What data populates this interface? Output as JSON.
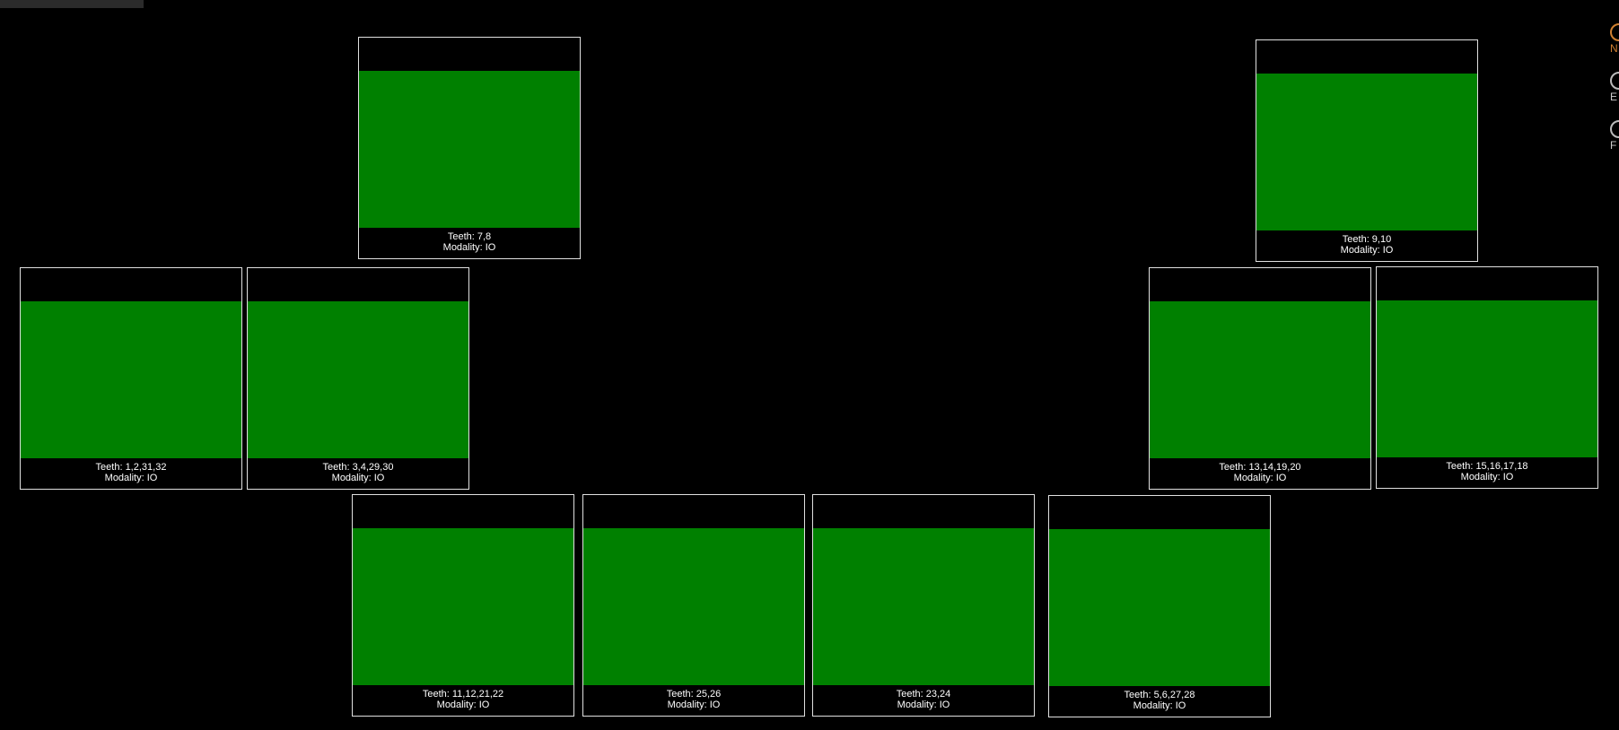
{
  "colors": {
    "background": "#000000",
    "image_fill": "#008000",
    "slot_border": "#e0e0e0",
    "caption_text": "#ffffff",
    "side_accent": "#d08030"
  },
  "slots": [
    {
      "teeth": "Teeth: 7,8",
      "modality": "Modality: IO"
    },
    {
      "teeth": "Teeth: 9,10",
      "modality": "Modality: IO"
    },
    {
      "teeth": "Teeth: 1,2,31,32",
      "modality": "Modality: IO"
    },
    {
      "teeth": "Teeth: 3,4,29,30",
      "modality": "Modality: IO"
    },
    {
      "teeth": "Teeth: 13,14,19,20",
      "modality": "Modality: IO"
    },
    {
      "teeth": "Teeth: 15,16,17,18",
      "modality": "Modality: IO"
    },
    {
      "teeth": "Teeth: 11,12,21,22",
      "modality": "Modality: IO"
    },
    {
      "teeth": "Teeth: 25,26",
      "modality": "Modality: IO"
    },
    {
      "teeth": "Teeth: 23,24",
      "modality": "Modality: IO"
    },
    {
      "teeth": "Teeth: 5,6,27,28",
      "modality": "Modality: IO"
    }
  ],
  "side_panel": {
    "items": [
      {
        "label": "N",
        "icon": "radio-icon"
      },
      {
        "label": "E",
        "icon": "radio-icon"
      },
      {
        "label": "F",
        "icon": "radio-icon"
      }
    ]
  }
}
